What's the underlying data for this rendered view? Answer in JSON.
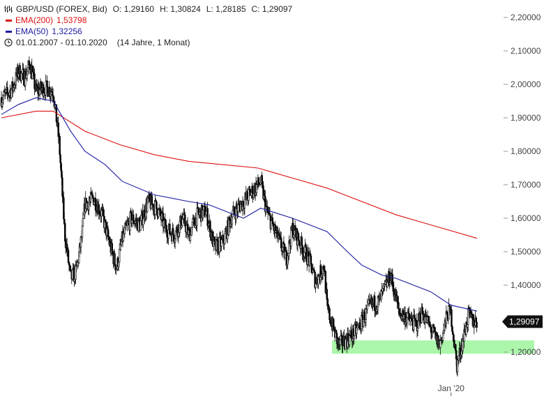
{
  "header": {
    "instrument": "GBP/USD (FOREX, Bid)",
    "open": "O: 1,29160",
    "high": "H: 1,30824",
    "low": "L: 1,28185",
    "close": "C: 1,29097"
  },
  "legend": {
    "ema200_label": "EMA(200)",
    "ema200_value": "1,53798",
    "ema50_label": "EMA(50)",
    "ema50_value": "1,32256",
    "period": "01.01.2007 - 01.10.2020",
    "duration": "(14 Jahre, 1 Monat)"
  },
  "colors": {
    "ema200": "#dd1111",
    "ema50": "#1a1aa0",
    "candle": "#000000",
    "support_zone": "#9cf59c",
    "price_tag": "#111111"
  },
  "chart_data": {
    "type": "candlestick",
    "y_ticks": [
      "2,20000",
      "2,10000",
      "2,00000",
      "1,90000",
      "1,80000",
      "1,70000",
      "1,60000",
      "1,50000",
      "1,40000",
      "1,20000"
    ],
    "y_tick_values": [
      2.2,
      2.1,
      2.0,
      1.9,
      1.8,
      1.7,
      1.6,
      1.5,
      1.4,
      1.2
    ],
    "x_ticks": [
      "Jan '20"
    ],
    "x_tick_dates": [
      "2020-01-01"
    ],
    "x_range": [
      "2007-01-01",
      "2020-10-01"
    ],
    "y_range": [
      1.1,
      2.23
    ],
    "last_price": "1,29097",
    "last_price_value": 1.29097,
    "support_zone": [
      1.195,
      1.235
    ],
    "price_path": [
      [
        "2007-01-01",
        1.96
      ],
      [
        "2007-03-01",
        1.97
      ],
      [
        "2007-05-01",
        1.99
      ],
      [
        "2007-07-01",
        2.04
      ],
      [
        "2007-09-01",
        2.02
      ],
      [
        "2007-11-01",
        2.06
      ],
      [
        "2008-01-01",
        1.98
      ],
      [
        "2008-04-01",
        1.99
      ],
      [
        "2008-07-01",
        1.98
      ],
      [
        "2008-09-01",
        1.83
      ],
      [
        "2008-11-01",
        1.55
      ],
      [
        "2009-01-01",
        1.42
      ],
      [
        "2009-03-01",
        1.44
      ],
      [
        "2009-05-01",
        1.55
      ],
      [
        "2009-06-01",
        1.64
      ],
      [
        "2009-09-01",
        1.66
      ],
      [
        "2009-12-01",
        1.61
      ],
      [
        "2010-03-01",
        1.51
      ],
      [
        "2010-05-01",
        1.45
      ],
      [
        "2010-07-01",
        1.54
      ],
      [
        "2010-10-01",
        1.6
      ],
      [
        "2011-01-01",
        1.58
      ],
      [
        "2011-04-01",
        1.65
      ],
      [
        "2011-07-01",
        1.63
      ],
      [
        "2011-10-01",
        1.57
      ],
      [
        "2012-01-01",
        1.55
      ],
      [
        "2012-04-01",
        1.6
      ],
      [
        "2012-06-01",
        1.55
      ],
      [
        "2012-09-01",
        1.61
      ],
      [
        "2012-12-01",
        1.62
      ],
      [
        "2013-03-01",
        1.51
      ],
      [
        "2013-06-01",
        1.53
      ],
      [
        "2013-09-01",
        1.61
      ],
      [
        "2013-12-01",
        1.64
      ],
      [
        "2014-03-01",
        1.67
      ],
      [
        "2014-07-01",
        1.71
      ],
      [
        "2014-09-01",
        1.62
      ],
      [
        "2014-12-01",
        1.56
      ],
      [
        "2015-04-01",
        1.48
      ],
      [
        "2015-06-01",
        1.57
      ],
      [
        "2015-09-01",
        1.52
      ],
      [
        "2015-12-01",
        1.47
      ],
      [
        "2016-02-01",
        1.41
      ],
      [
        "2016-05-01",
        1.46
      ],
      [
        "2016-06-01",
        1.33
      ],
      [
        "2016-10-01",
        1.22
      ],
      [
        "2017-01-01",
        1.24
      ],
      [
        "2017-03-01",
        1.25
      ],
      [
        "2017-06-01",
        1.29
      ],
      [
        "2017-09-01",
        1.34
      ],
      [
        "2017-12-01",
        1.35
      ],
      [
        "2018-03-01",
        1.41
      ],
      [
        "2018-04-01",
        1.43
      ],
      [
        "2018-07-01",
        1.32
      ],
      [
        "2018-10-01",
        1.3
      ],
      [
        "2019-01-01",
        1.28
      ],
      [
        "2019-03-01",
        1.32
      ],
      [
        "2019-06-01",
        1.27
      ],
      [
        "2019-09-01",
        1.22
      ],
      [
        "2019-12-01",
        1.32
      ],
      [
        "2020-01-01",
        1.31
      ],
      [
        "2020-03-01",
        1.16
      ],
      [
        "2020-05-01",
        1.23
      ],
      [
        "2020-07-01",
        1.31
      ],
      [
        "2020-09-01",
        1.29
      ],
      [
        "2020-10-01",
        1.29097
      ]
    ],
    "series": [
      {
        "name": "EMA(200)",
        "color": "#dd1111",
        "points": [
          [
            "2007-01-01",
            1.9
          ],
          [
            "2008-01-01",
            1.92
          ],
          [
            "2008-07-01",
            1.92
          ],
          [
            "2009-06-01",
            1.86
          ],
          [
            "2010-06-01",
            1.82
          ],
          [
            "2011-06-01",
            1.79
          ],
          [
            "2012-06-01",
            1.77
          ],
          [
            "2013-06-01",
            1.76
          ],
          [
            "2014-06-01",
            1.75
          ],
          [
            "2015-06-01",
            1.72
          ],
          [
            "2016-06-01",
            1.69
          ],
          [
            "2017-06-01",
            1.65
          ],
          [
            "2018-06-01",
            1.61
          ],
          [
            "2019-06-01",
            1.58
          ],
          [
            "2020-10-01",
            1.54
          ]
        ]
      },
      {
        "name": "EMA(50)",
        "color": "#1a1aa0",
        "points": [
          [
            "2007-01-01",
            1.91
          ],
          [
            "2007-07-01",
            1.94
          ],
          [
            "2008-01-01",
            1.96
          ],
          [
            "2008-07-01",
            1.95
          ],
          [
            "2009-01-01",
            1.86
          ],
          [
            "2009-06-01",
            1.8
          ],
          [
            "2010-01-01",
            1.76
          ],
          [
            "2010-07-01",
            1.71
          ],
          [
            "2011-06-01",
            1.67
          ],
          [
            "2012-06-01",
            1.65
          ],
          [
            "2013-01-01",
            1.64
          ],
          [
            "2013-07-01",
            1.62
          ],
          [
            "2014-01-01",
            1.6
          ],
          [
            "2014-07-01",
            1.63
          ],
          [
            "2015-06-01",
            1.6
          ],
          [
            "2016-06-01",
            1.56
          ],
          [
            "2017-01-01",
            1.5
          ],
          [
            "2017-06-01",
            1.46
          ],
          [
            "2018-01-01",
            1.43
          ],
          [
            "2018-06-01",
            1.42
          ],
          [
            "2019-06-01",
            1.38
          ],
          [
            "2020-01-01",
            1.34
          ],
          [
            "2020-10-01",
            1.32256
          ]
        ]
      }
    ]
  }
}
